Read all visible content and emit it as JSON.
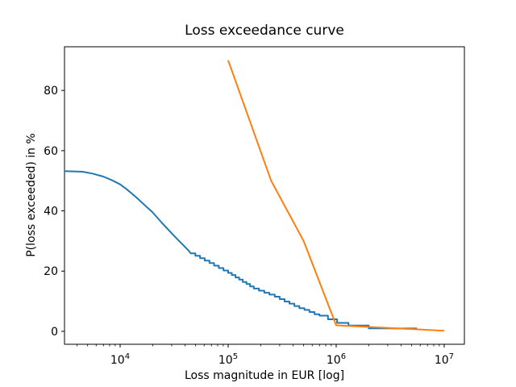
{
  "figure": {
    "background": "#ffffff",
    "frame_color": "#000000"
  },
  "chart_data": {
    "type": "line",
    "title": "Loss exceedance curve",
    "xlabel": "Loss magnitude in EUR [log]",
    "ylabel": "P(loss exceeded) in %",
    "xscale": "log",
    "grid": false,
    "legend": "none",
    "xlim_log": [
      3.485,
      7.187
    ],
    "ylim": [
      -4.3,
      94.5
    ],
    "x_ticks": [
      {
        "value": 10000,
        "label_base": "10",
        "label_exp": "4"
      },
      {
        "value": 100000,
        "label_base": "10",
        "label_exp": "5"
      },
      {
        "value": 1000000,
        "label_base": "10",
        "label_exp": "6"
      },
      {
        "value": 10000000,
        "label_base": "10",
        "label_exp": "7"
      }
    ],
    "y_ticks": [
      0,
      20,
      40,
      60,
      80
    ],
    "series": [
      {
        "id": "blue-stepped-curve",
        "color": "#1f77b4",
        "line_width": 2,
        "points": [
          [
            3050,
            53.2
          ],
          [
            4500,
            53.0
          ],
          [
            5500,
            52.4
          ],
          [
            7000,
            51.4
          ],
          [
            8500,
            50.1
          ],
          [
            10000,
            48.8
          ],
          [
            11500,
            47.2
          ],
          [
            14000,
            44.6
          ],
          [
            17000,
            41.8
          ],
          [
            20000,
            39.5
          ],
          [
            24000,
            36.3
          ],
          [
            28000,
            33.7
          ],
          [
            33000,
            31.0
          ],
          [
            38000,
            28.8
          ],
          [
            43000,
            26.8
          ],
          [
            45000,
            25.9
          ],
          [
            49700,
            25.9
          ],
          [
            49700,
            25.1
          ],
          [
            54900,
            25.1
          ],
          [
            54900,
            24.3
          ],
          [
            60700,
            24.3
          ],
          [
            60700,
            23.5
          ],
          [
            67100,
            23.5
          ],
          [
            67100,
            22.7
          ],
          [
            74100,
            22.7
          ],
          [
            74100,
            21.8
          ],
          [
            81900,
            21.8
          ],
          [
            81900,
            21.0
          ],
          [
            90500,
            21.0
          ],
          [
            90500,
            20.2
          ],
          [
            100000,
            20.2
          ],
          [
            100000,
            19.4
          ],
          [
            108100,
            19.4
          ],
          [
            108100,
            18.7
          ],
          [
            116900,
            18.7
          ],
          [
            116900,
            17.9
          ],
          [
            126400,
            17.9
          ],
          [
            126400,
            17.2
          ],
          [
            136600,
            17.2
          ],
          [
            136600,
            16.4
          ],
          [
            147700,
            16.4
          ],
          [
            147700,
            15.7
          ],
          [
            159700,
            15.7
          ],
          [
            159700,
            14.9
          ],
          [
            172700,
            14.9
          ],
          [
            172700,
            14.2
          ],
          [
            193000,
            14.2
          ],
          [
            193000,
            13.5
          ],
          [
            216000,
            13.5
          ],
          [
            216000,
            12.8
          ],
          [
            241000,
            12.8
          ],
          [
            241000,
            12.2
          ],
          [
            270000,
            12.2
          ],
          [
            270000,
            11.5
          ],
          [
            300000,
            11.5
          ],
          [
            300000,
            10.7
          ],
          [
            333000,
            10.7
          ],
          [
            333000,
            9.9
          ],
          [
            369000,
            9.9
          ],
          [
            369000,
            9.2
          ],
          [
            410000,
            9.2
          ],
          [
            410000,
            8.4
          ],
          [
            456000,
            8.4
          ],
          [
            456000,
            7.7
          ],
          [
            508000,
            7.7
          ],
          [
            508000,
            7.1
          ],
          [
            566000,
            7.1
          ],
          [
            566000,
            6.4
          ],
          [
            630000,
            6.4
          ],
          [
            630000,
            5.7
          ],
          [
            700000,
            5.7
          ],
          [
            700000,
            5.2
          ],
          [
            840000,
            5.2
          ],
          [
            840000,
            4.0
          ],
          [
            1020000,
            4.0
          ],
          [
            1020000,
            2.8
          ],
          [
            1300000,
            2.8
          ],
          [
            1300000,
            1.9
          ],
          [
            2000000,
            1.9
          ],
          [
            2000000,
            1.0
          ],
          [
            5600000,
            0.95
          ]
        ]
      },
      {
        "id": "orange-scenario-curve",
        "color": "#ff7f0e",
        "line_width": 2,
        "points": [
          [
            100000,
            90
          ],
          [
            250000,
            50
          ],
          [
            500000,
            30
          ],
          [
            1000000,
            2
          ],
          [
            10000000,
            0.2
          ]
        ]
      }
    ]
  }
}
